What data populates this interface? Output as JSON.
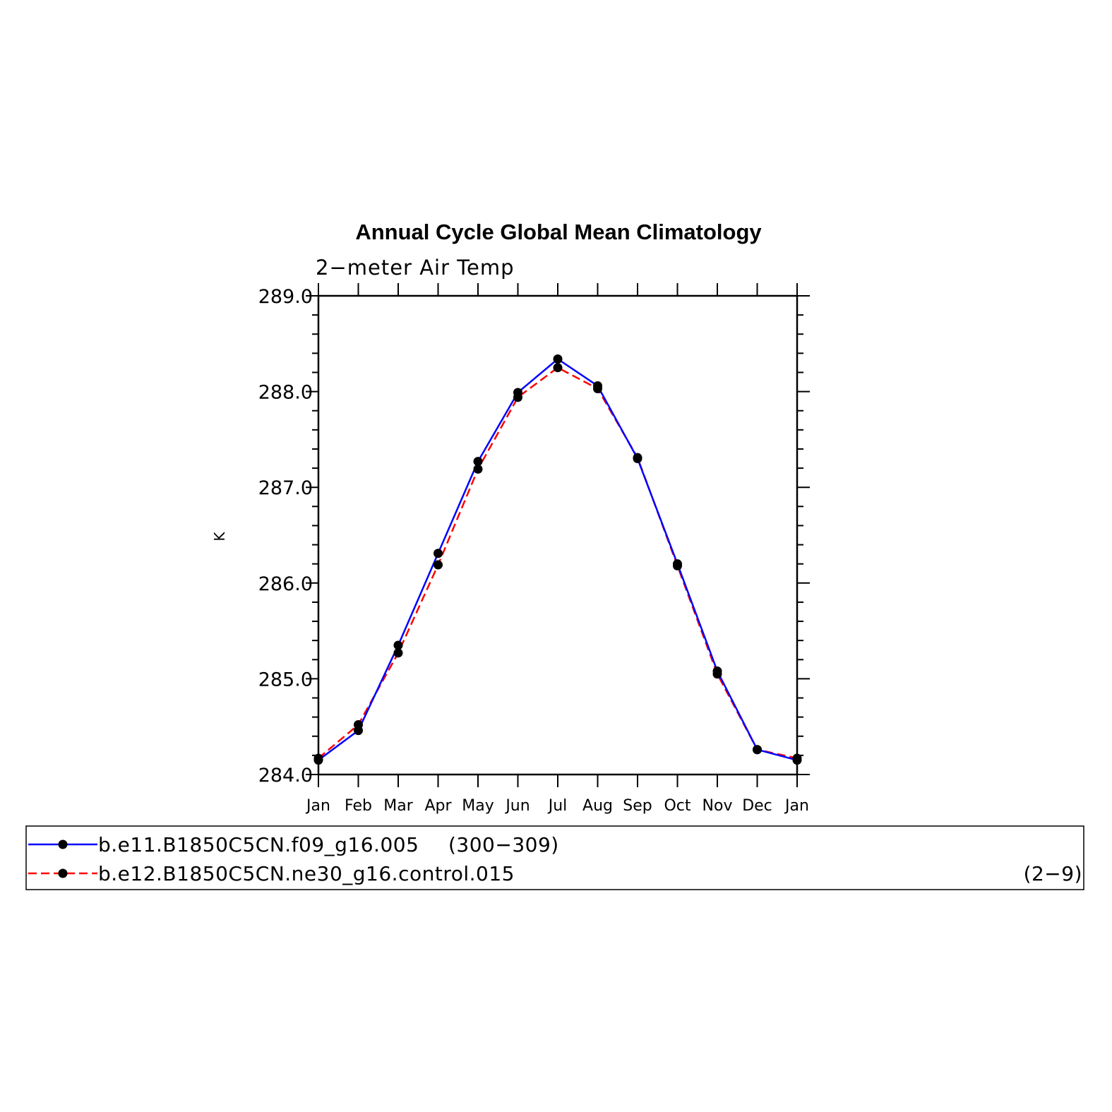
{
  "chart_data": {
    "type": "line",
    "title": "Annual Cycle Global Mean Climatology",
    "subtitle": "2−meter Air Temp",
    "xlabel": "",
    "ylabel": "K",
    "categories": [
      "Jan",
      "Feb",
      "Mar",
      "Apr",
      "May",
      "Jun",
      "Jul",
      "Aug",
      "Sep",
      "Oct",
      "Nov",
      "Dec",
      "Jan"
    ],
    "ylim": [
      284.0,
      289.0
    ],
    "yticks": [
      "284.0",
      "285.0",
      "286.0",
      "287.0",
      "288.0",
      "289.0"
    ],
    "series": [
      {
        "name": "b.e11.B1850C5CN.f09_g16.005",
        "years": "(300−309)",
        "color": "#0000ff",
        "style": "solid",
        "values": [
          284.15,
          284.46,
          285.35,
          286.31,
          287.27,
          287.99,
          288.34,
          288.06,
          287.3,
          286.2,
          285.08,
          284.26,
          284.15
        ]
      },
      {
        "name": "b.e12.B1850C5CN.ne30_g16.control.015",
        "years": "(2−9)",
        "color": "#ff0000",
        "style": "dashed",
        "values": [
          284.17,
          284.52,
          285.27,
          286.19,
          287.19,
          287.94,
          288.25,
          288.03,
          287.31,
          286.18,
          285.05,
          284.26,
          284.17
        ]
      }
    ],
    "legend_position": "bottom",
    "grid": false
  }
}
